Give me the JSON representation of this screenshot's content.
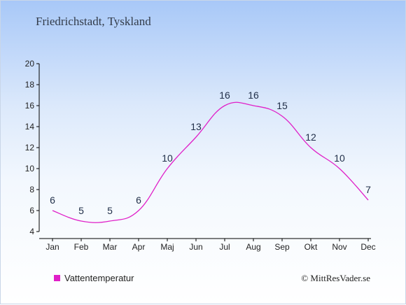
{
  "chart_data": {
    "type": "line",
    "title": "Friedrichstadt, Tyskland",
    "categories": [
      "Jan",
      "Feb",
      "Mar",
      "Apr",
      "Maj",
      "Jun",
      "Jul",
      "Aug",
      "Sep",
      "Okt",
      "Nov",
      "Dec"
    ],
    "series": [
      {
        "name": "Vattentemperatur",
        "values": [
          6,
          5,
          5,
          6,
          10,
          13,
          16,
          16,
          15,
          12,
          10,
          7
        ],
        "color": "#e020c8"
      }
    ],
    "yticks": [
      4,
      6,
      8,
      10,
      12,
      14,
      16,
      18,
      20
    ],
    "ylim": [
      4,
      20
    ],
    "xlabel": "",
    "ylabel": "",
    "grid": false,
    "legend_position": "bottom-left"
  },
  "credit": "© MittResVader.se"
}
